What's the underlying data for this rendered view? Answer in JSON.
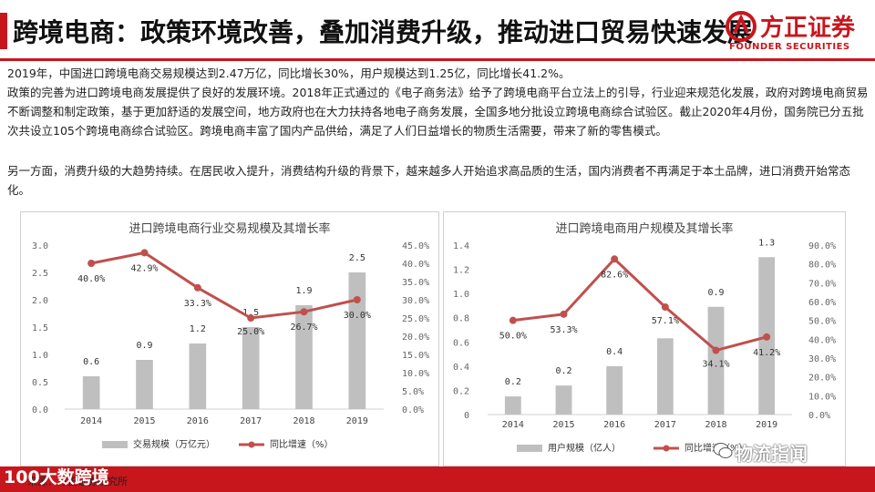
{
  "header": {
    "title": "跨境电商：政策环境改善，叠加消费升级，推动进口贸易快速发展",
    "logo_cn": "方正证券",
    "logo_en": "FOUNDER SECURITIES"
  },
  "body": {
    "p1": "2019年，中国进口跨境电商交易规模达到2.47万亿，同比增长30%，用户规模达到1.25亿，同比增长41.2%。",
    "p2": "政策的完善为进口跨境电商发展提供了良好的发展环境。2018年正式通过的《电子商务法》给予了跨境电商平台立法上的引导，行业迎来规范化发展，政府对跨境电商贸易不断调整和制定政策，基于更加舒适的发展空间，地方政府也在大力扶持各地电子商务发展，全国多地分批设立跨境电商综合试验区。截止2020年4月份，国务院已分五批次共设立105个跨境电商综合试验区。跨境电商丰富了国内产品供给，满足了人们日益增长的物质生活需要，带来了新的零售模式。",
    "p3": "另一方面，消费升级的大趋势持续。在居民收入提升，消费结构升级的背景下，越来越多人开始追求高品质的生活，国内消费者不再满足于本土品牌，进口消费开始常态化。"
  },
  "footer": {
    "source": "来源：方正证券研究所",
    "watermark_left": "100大数跨境",
    "watermark_right": "物流指闻"
  },
  "colors": {
    "accent": "#c8161d",
    "bar": "#bfbfbf",
    "line": "#c0504d"
  },
  "chart_data": [
    {
      "type": "bar+line",
      "title": "进口跨境电商行业交易规模及其增长率",
      "categories": [
        "2014",
        "2015",
        "2016",
        "2017",
        "2018",
        "2019"
      ],
      "series": [
        {
          "name": "交易规模（万亿元）",
          "type": "bar",
          "axis": "left",
          "values": [
            0.6,
            0.9,
            1.2,
            1.5,
            1.9,
            2.5
          ],
          "labels": [
            "0.6",
            "0.9",
            "1.2",
            "1.5",
            "1.9",
            "2.5"
          ]
        },
        {
          "name": "同比增速（%）",
          "type": "line",
          "axis": "right",
          "values": [
            40.0,
            42.9,
            33.3,
            25.0,
            26.7,
            30.0
          ],
          "labels": [
            "40.0%",
            "42.9%",
            "33.3%",
            "25.0%",
            "26.7%",
            "30.0%"
          ]
        }
      ],
      "left_axis": {
        "min": 0,
        "max": 3.0,
        "ticks": [
          "0.0",
          "0.5",
          "1.0",
          "1.5",
          "2.0",
          "2.5",
          "3.0"
        ]
      },
      "right_axis": {
        "min": 0,
        "max": 45,
        "ticks": [
          "0.0%",
          "5.0%",
          "10.0%",
          "15.0%",
          "20.0%",
          "25.0%",
          "30.0%",
          "35.0%",
          "40.0%",
          "45.0%"
        ]
      },
      "legend_position": "bottom"
    },
    {
      "type": "bar+line",
      "title": "进口跨境电商用户规模及其增长率",
      "categories": [
        "2014",
        "2015",
        "2016",
        "2017",
        "2018",
        "2019"
      ],
      "series": [
        {
          "name": "用户规模（亿人）",
          "type": "bar",
          "axis": "left",
          "values": [
            0.15,
            0.24,
            0.4,
            0.63,
            0.89,
            1.3
          ],
          "labels": [
            "0.2",
            "0.2",
            "0.4",
            "",
            "0.9",
            "1.3"
          ]
        },
        {
          "name": "同比增速（%）",
          "type": "line",
          "axis": "right",
          "values": [
            50.0,
            53.3,
            82.6,
            57.1,
            34.1,
            41.2
          ],
          "labels": [
            "50.0%",
            "53.3%",
            "82.6%",
            "57.1%",
            "34.1%",
            "41.2%"
          ]
        }
      ],
      "left_axis": {
        "min": 0,
        "max": 1.4,
        "ticks": [
          "0",
          "0.2",
          "0.4",
          "0.6",
          "0.8",
          "1.0",
          "1.2",
          "1.4"
        ]
      },
      "right_axis": {
        "min": 0,
        "max": 90,
        "ticks": [
          "0.0%",
          "10.0%",
          "20.0%",
          "30.0%",
          "40.0%",
          "50.0%",
          "60.0%",
          "70.0%",
          "80.0%",
          "90.0%"
        ]
      },
      "legend_position": "bottom"
    }
  ]
}
